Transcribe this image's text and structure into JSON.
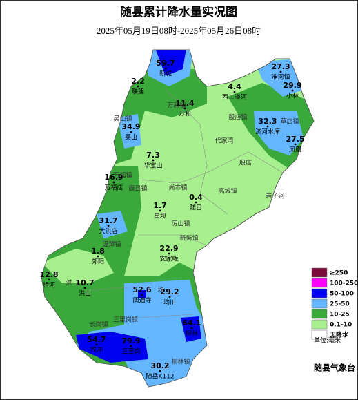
{
  "title": "随县累计降水量实况图",
  "subtitle": "2025年05月19日08时-2025年05月26日08时",
  "stations": [
    {
      "value": 59.7,
      "name": "新城"
    },
    {
      "value": 2.2,
      "name": "联建"
    },
    {
      "value": 4.4,
      "name": "西二道河"
    },
    {
      "value": 27.3,
      "name": "淮河镇"
    },
    {
      "value": 29.9,
      "name": "小林"
    },
    {
      "value": 11.4,
      "name": "万和"
    },
    {
      "value": 34.9,
      "name": "吴山"
    },
    {
      "value": 32.3,
      "name": "济河水库"
    },
    {
      "value": 27.5,
      "name": "凤凰"
    },
    {
      "value": 7.3,
      "name": "华宝山"
    },
    {
      "value": 16.9,
      "name": "万福店"
    },
    {
      "value": 0.4,
      "name": "随日"
    },
    {
      "value": 1.7,
      "name": "星坝"
    },
    {
      "value": 31.7,
      "name": "大洪店"
    },
    {
      "value": 22.9,
      "name": "安家畈"
    },
    {
      "value": 1.8,
      "name": "郊阳"
    },
    {
      "value": 12.8,
      "name": "桥河"
    },
    {
      "value": 10.7,
      "name": "洪山"
    },
    {
      "value": 52.6,
      "name": "阔通寺"
    },
    {
      "value": 29.2,
      "name": "均川"
    },
    {
      "value": 64.1,
      "name": "柳林"
    },
    {
      "value": 54.7,
      "name": "铁冲"
    },
    {
      "value": 79.9,
      "name": "三里岗"
    },
    {
      "value": 30.2,
      "name": "随岳K112"
    }
  ],
  "places": [
    "万和镇",
    "吴山镇",
    "草店镇",
    "殷店镇",
    "代家湾",
    "殷店",
    "万福镇",
    "唐县镇",
    "尚市镇",
    "高城镇",
    "岩子河",
    "厉山镇",
    "温潭镇",
    "新街镇",
    "洪",
    "均",
    "长岗镇",
    "三里岗镇",
    "柳林镇"
  ],
  "legend": {
    "items": [
      {
        "label": "≥250",
        "color": "#7a0a3c"
      },
      {
        "label": "100-250",
        "color": "#ff00ff"
      },
      {
        "label": "50-100",
        "color": "#0000f0"
      },
      {
        "label": "25-50",
        "color": "#63b6ff"
      },
      {
        "label": "10-25",
        "color": "#3aa83a"
      },
      {
        "label": "0.1-10",
        "color": "#a8f08f"
      },
      {
        "label": "无降水",
        "color": "#ffffff"
      }
    ],
    "unit": "单位:毫米"
  },
  "footer": "随县气象台"
}
